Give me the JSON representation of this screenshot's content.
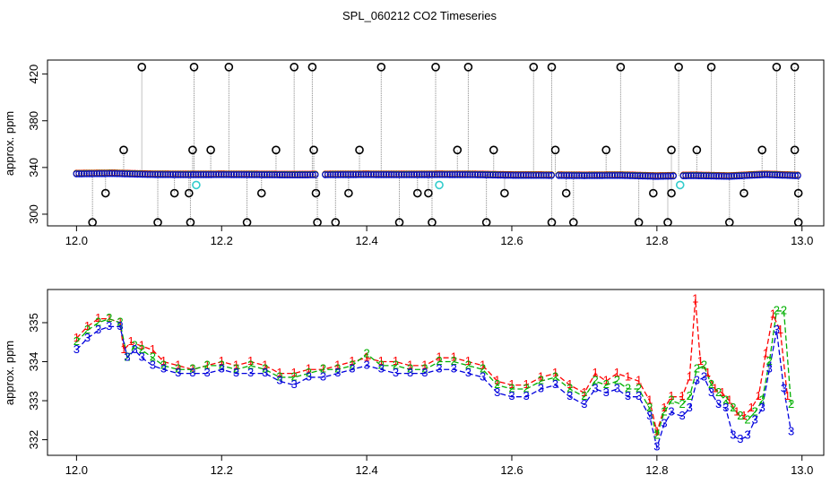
{
  "title": "SPL_060212  CO2 Timeseries",
  "colors": {
    "frame": "#000000",
    "series_1": "#ff0000",
    "series_2": "#00b000",
    "series_3": "#0000dd",
    "outlier": "#000000",
    "spike": "#888888",
    "cyan": "#33cccc"
  },
  "chart_data": [
    {
      "type": "scatter",
      "panel": "top",
      "title": "",
      "xlabel": "",
      "ylabel": "approx. ppm",
      "xlim": [
        11.96,
        13.03
      ],
      "ylim": [
        290,
        432
      ],
      "x_ticks": [
        12.0,
        12.2,
        12.4,
        12.6,
        12.8,
        13.0
      ],
      "x_tick_labels": [
        "12.0",
        "12.2",
        "12.4",
        "12.6",
        "12.8",
        "13.0"
      ],
      "y_ticks": [
        300,
        340,
        380,
        420
      ],
      "y_tick_labels": [
        "300",
        "340",
        "380",
        "420"
      ],
      "grid": false,
      "legend": "none",
      "baseline": {
        "x": [
          12.0,
          12.05,
          12.1,
          12.15,
          12.2,
          12.25,
          12.3,
          12.35,
          12.4,
          12.45,
          12.5,
          12.55,
          12.6,
          12.65,
          12.7,
          12.75,
          12.8,
          12.85,
          12.9,
          12.95,
          12.99
        ],
        "y": [
          334.5,
          334.8,
          334.0,
          333.8,
          333.9,
          333.8,
          333.6,
          333.8,
          333.9,
          333.8,
          333.9,
          333.8,
          333.3,
          333.2,
          333.0,
          333.2,
          332.4,
          333.0,
          332.4,
          333.9,
          333.0
        ]
      },
      "outliers_high": {
        "x": [
          12.09,
          12.162,
          12.21,
          12.3,
          12.325,
          12.42,
          12.495,
          12.54,
          12.63,
          12.655,
          12.75,
          12.83,
          12.875,
          12.965,
          12.99
        ],
        "y": [
          426,
          426,
          426,
          426,
          426,
          426,
          426,
          426,
          426,
          426,
          426,
          426,
          426,
          426,
          426
        ]
      },
      "outliers_mid": {
        "x": [
          12.065,
          12.16,
          12.185,
          12.275,
          12.327,
          12.39,
          12.525,
          12.575,
          12.66,
          12.73,
          12.82,
          12.855,
          12.945,
          12.99
        ],
        "y": [
          355,
          355,
          355,
          355,
          355,
          355,
          355,
          355,
          355,
          355,
          355,
          355,
          355,
          355
        ]
      },
      "outliers_low": {
        "x": [
          12.04,
          12.135,
          12.155,
          12.255,
          12.33,
          12.375,
          12.47,
          12.485,
          12.59,
          12.675,
          12.795,
          12.82,
          12.92,
          12.995
        ],
        "y": [
          318,
          318,
          318,
          318,
          318,
          318,
          318,
          318,
          318,
          318,
          318,
          318,
          318,
          318
        ]
      },
      "outliers_bottom": {
        "x": [
          12.022,
          12.112,
          12.157,
          12.235,
          12.332,
          12.357,
          12.445,
          12.49,
          12.565,
          12.655,
          12.685,
          12.775,
          12.815,
          12.9,
          12.995
        ],
        "y": [
          293,
          293,
          293,
          293,
          293,
          293,
          293,
          293,
          293,
          293,
          293,
          293,
          293,
          293,
          293
        ]
      },
      "cyan_points": {
        "x": [
          12.165,
          12.5,
          12.832
        ],
        "y": [
          325,
          325,
          325
        ]
      }
    },
    {
      "type": "line",
      "panel": "bottom",
      "title": "",
      "xlabel": "",
      "ylabel": "approx. ppm",
      "xlim": [
        11.96,
        13.03
      ],
      "ylim": [
        331.6,
        335.85
      ],
      "x_ticks": [
        12.0,
        12.2,
        12.4,
        12.6,
        12.8,
        13.0
      ],
      "x_tick_labels": [
        "12.0",
        "12.2",
        "12.4",
        "12.6",
        "12.8",
        "13.0"
      ],
      "y_ticks": [
        332,
        333,
        334,
        335
      ],
      "y_tick_labels": [
        "332",
        "333",
        "334",
        "335"
      ],
      "grid": false,
      "legend": "none",
      "series": [
        {
          "marker": "1",
          "x": [
            12.0,
            12.015,
            12.03,
            12.045,
            12.06,
            12.065,
            12.075,
            12.09,
            12.105,
            12.12,
            12.14,
            12.16,
            12.18,
            12.2,
            12.22,
            12.24,
            12.26,
            12.28,
            12.3,
            12.32,
            12.34,
            12.36,
            12.38,
            12.4,
            12.42,
            12.44,
            12.46,
            12.48,
            12.5,
            12.52,
            12.54,
            12.56,
            12.58,
            12.6,
            12.62,
            12.64,
            12.66,
            12.68,
            12.7,
            12.715,
            12.73,
            12.745,
            12.76,
            12.775,
            12.79,
            12.8,
            12.81,
            12.82,
            12.835,
            12.845,
            12.853,
            12.86,
            12.87,
            12.88,
            12.89,
            12.9,
            12.91,
            12.92,
            12.93,
            12.94,
            12.95,
            12.96,
            12.97,
            12.98
          ],
          "y": [
            334.6,
            334.9,
            335.1,
            335.1,
            335.0,
            334.3,
            334.5,
            334.4,
            334.3,
            334.0,
            333.9,
            333.8,
            333.9,
            334.0,
            333.9,
            334.0,
            333.9,
            333.7,
            333.7,
            333.8,
            333.8,
            333.9,
            334.0,
            334.1,
            334.0,
            334.0,
            333.9,
            333.9,
            334.1,
            334.1,
            334.0,
            333.9,
            333.5,
            333.4,
            333.4,
            333.6,
            333.7,
            333.4,
            333.2,
            333.7,
            333.5,
            333.7,
            333.6,
            333.5,
            333.0,
            332.2,
            332.8,
            333.1,
            333.1,
            333.6,
            335.6,
            334.0,
            333.7,
            333.3,
            333.2,
            333.0,
            332.7,
            332.6,
            332.8,
            333.1,
            334.2,
            335.2,
            334.8,
            333.1
          ]
        },
        {
          "marker": "2",
          "x": [
            12.0,
            12.015,
            12.03,
            12.045,
            12.06,
            12.07,
            12.08,
            12.09,
            12.105,
            12.12,
            12.14,
            12.16,
            12.18,
            12.2,
            12.22,
            12.24,
            12.26,
            12.28,
            12.3,
            12.32,
            12.34,
            12.36,
            12.38,
            12.4,
            12.42,
            12.44,
            12.46,
            12.48,
            12.5,
            12.52,
            12.54,
            12.56,
            12.58,
            12.6,
            12.62,
            12.64,
            12.66,
            12.68,
            12.7,
            12.715,
            12.73,
            12.745,
            12.76,
            12.775,
            12.79,
            12.8,
            12.81,
            12.82,
            12.835,
            12.845,
            12.855,
            12.865,
            12.875,
            12.885,
            12.895,
            12.905,
            12.915,
            12.925,
            12.935,
            12.945,
            12.955,
            12.965,
            12.975,
            12.985
          ],
          "y": [
            334.5,
            334.8,
            335.0,
            335.1,
            335.0,
            334.1,
            334.4,
            334.3,
            334.1,
            333.9,
            333.8,
            333.8,
            333.9,
            333.9,
            333.8,
            333.9,
            333.8,
            333.6,
            333.6,
            333.7,
            333.8,
            333.8,
            333.9,
            334.2,
            333.9,
            333.9,
            333.8,
            333.8,
            334.0,
            334.0,
            333.9,
            333.8,
            333.4,
            333.3,
            333.3,
            333.5,
            333.6,
            333.3,
            333.1,
            333.5,
            333.4,
            333.5,
            333.3,
            333.3,
            332.8,
            332.1,
            332.7,
            333.0,
            332.9,
            333.1,
            333.8,
            333.9,
            333.4,
            333.2,
            333.0,
            332.8,
            332.6,
            332.5,
            332.7,
            333.0,
            334.0,
            335.3,
            335.3,
            332.9
          ]
        },
        {
          "marker": "3",
          "x": [
            12.0,
            12.015,
            12.03,
            12.045,
            12.06,
            12.07,
            12.08,
            12.09,
            12.105,
            12.12,
            12.14,
            12.16,
            12.18,
            12.2,
            12.22,
            12.24,
            12.26,
            12.28,
            12.3,
            12.32,
            12.34,
            12.36,
            12.38,
            12.4,
            12.42,
            12.44,
            12.46,
            12.48,
            12.5,
            12.52,
            12.54,
            12.56,
            12.58,
            12.6,
            12.62,
            12.64,
            12.66,
            12.68,
            12.7,
            12.715,
            12.73,
            12.745,
            12.76,
            12.775,
            12.79,
            12.8,
            12.81,
            12.82,
            12.835,
            12.845,
            12.855,
            12.865,
            12.875,
            12.885,
            12.895,
            12.905,
            12.915,
            12.925,
            12.935,
            12.945,
            12.955,
            12.965,
            12.975,
            12.985
          ],
          "y": [
            334.3,
            334.6,
            334.8,
            334.9,
            334.9,
            334.1,
            334.3,
            334.1,
            333.9,
            333.8,
            333.7,
            333.7,
            333.7,
            333.8,
            333.7,
            333.7,
            333.7,
            333.5,
            333.4,
            333.6,
            333.6,
            333.7,
            333.8,
            333.9,
            333.8,
            333.7,
            333.7,
            333.7,
            333.8,
            333.8,
            333.7,
            333.6,
            333.2,
            333.1,
            333.1,
            333.3,
            333.4,
            333.1,
            332.9,
            333.3,
            333.2,
            333.3,
            333.1,
            333.1,
            332.6,
            331.8,
            332.4,
            332.7,
            332.6,
            332.8,
            333.5,
            333.6,
            333.2,
            332.9,
            332.8,
            332.1,
            332.0,
            332.1,
            332.5,
            332.8,
            333.8,
            334.8,
            333.3,
            332.2
          ]
        }
      ]
    }
  ]
}
